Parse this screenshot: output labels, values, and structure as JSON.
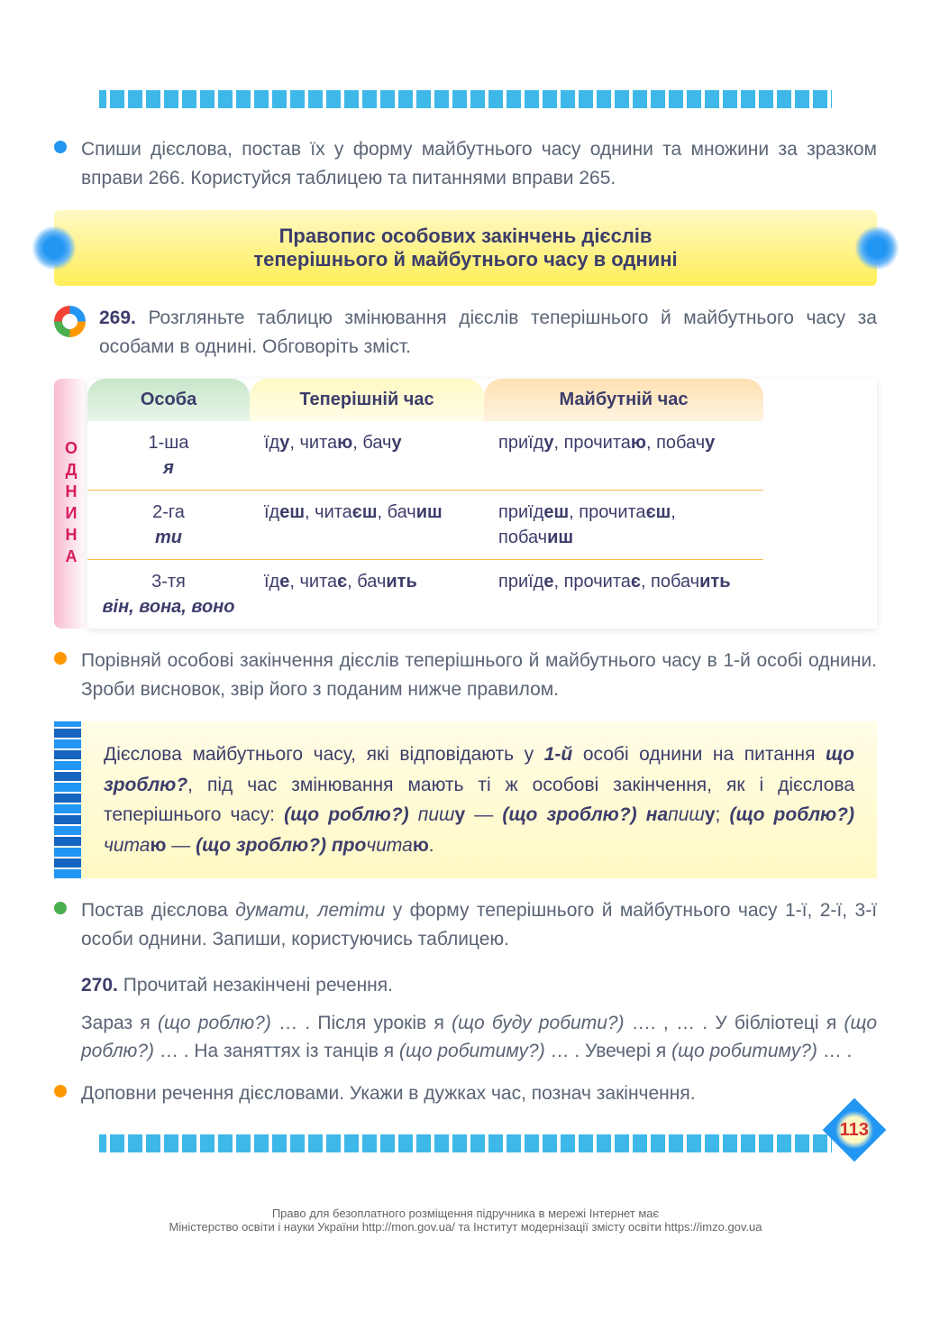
{
  "exercise_intro": {
    "text": "Спиши дієслова, постав їх у форму майбутнього часу однини та множини за зразком вправи 266. Користуйся таблицею та питаннями вправи 265."
  },
  "section_header": {
    "line1": "Правопис особових закінчень дієслів",
    "line2": "теперішнього й майбутнього часу в однині"
  },
  "exercise_269": {
    "number": "269.",
    "text": "Розгляньте таблицю змінювання дієслів теперішнього й майбутнього часу за особами в однині. Обговоріть зміст."
  },
  "table": {
    "vertical_label": "ОДНИНА",
    "headers": {
      "col1": "Особа",
      "col2": "Теперішній час",
      "col3": "Майбутній час"
    },
    "rows": [
      {
        "person": "1-ша",
        "pronoun": "я",
        "present_html": "їд<strong>у</strong>, чита<strong>ю</strong>, бач<strong>у</strong>",
        "future_html": "приїд<strong>у</strong>, прочита<strong>ю</strong>, побач<strong>у</strong>"
      },
      {
        "person": "2-га",
        "pronoun": "ти",
        "present_html": "їд<strong>еш</strong>, чита<strong>єш</strong>, бач<strong>иш</strong>",
        "future_html": "приїд<strong>еш</strong>, прочита<strong>єш</strong>, побач<strong>иш</strong>"
      },
      {
        "person": "3-тя",
        "pronoun": "він, вона, воно",
        "present_html": "їд<strong>е</strong>, чита<strong>є</strong>, бач<strong>ить</strong>",
        "future_html": "приїд<strong>е</strong>, прочита<strong>є</strong>, побач<strong>ить</strong>"
      }
    ]
  },
  "compare_task": {
    "text": "Порівняй особові закінчення дієслів теперішнього й майбутнього часу в 1-й особі однини. Зроби висновок, звір його з поданим нижче правилом."
  },
  "rule_box": {
    "html": "Дієслова майбутнього часу, які відповідають у <strong><em>1-й</em></strong> особі однини на питання <strong><em>що зроблю?</em></strong>, під час змінювання мають ті ж особові закінчення, як і дієслова теперішнього часу: <strong><em>(що роблю?)</em></strong> <em>пиш</em><strong>у</strong> — <strong><em>(що зроблю?) на</em></strong><em>пиш</em><strong>у</strong>; <strong><em>(що роблю?)</em></strong> <em>чита</em><strong>ю</strong> — <strong><em>(що зроблю?) про</em></strong><em>чита</em><strong>ю</strong>."
  },
  "green_task": {
    "html": "Постав дієслова <em>думати, летіти</em> у форму теперішнього й майбутнього часу 1-ї, 2-ї, 3-ї особи однини. Запиши, користуючись таблицею."
  },
  "exercise_270": {
    "number": "270.",
    "text": "Прочитай незакінчені речення.",
    "body_html": "Зараз я <em>(що роблю?)</em> … . Після уроків я <em>(що буду робити?)</em> …. , … . У бібліотеці я <em>(що роблю?)</em> … . На заняттях із танців я <em>(що робитиму?)</em> … . Увечері я <em>(що робитиму?)</em> … ."
  },
  "orange_task": {
    "text": "Доповни речення дієсловами. Укажи в дужках час, познач закінчення."
  },
  "page_number": "113",
  "footer": {
    "line1": "Право для безоплатного розміщення підручника в мережі Інтернет має",
    "line2": "Міністерство освіти і науки України http://mon.gov.ua/ та Інститут модернізації змісту освіти https://imzo.gov.ua"
  },
  "colors": {
    "text_body": "#5a6475",
    "text_heading": "#3d3d6b",
    "bullet_blue": "#2196f3",
    "bullet_orange": "#ff9800",
    "bullet_green": "#4caf50"
  }
}
